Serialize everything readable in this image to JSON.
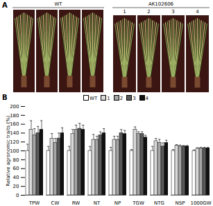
{
  "panel_labels": [
    "A",
    "B"
  ],
  "photo_panel": {
    "groups": [
      {
        "title": "WT",
        "lanes": [
          null,
          null,
          null,
          null
        ]
      },
      {
        "title": "AK102606",
        "lanes": [
          "1",
          "2",
          "3",
          "4"
        ]
      }
    ]
  },
  "chart_data": {
    "type": "bar",
    "y_label": "Relative agronomic traits (%)",
    "categories": [
      "TPW",
      "CW",
      "RW",
      "NT",
      "NP",
      "TGW",
      "NTG",
      "NSP",
      "1000GW"
    ],
    "series": [
      {
        "name": "WT",
        "color": "#ffffff",
        "values": [
          100,
          100,
          100,
          100,
          100,
          100,
          100,
          100,
          100
        ],
        "errors": [
          15,
          10,
          10,
          10,
          8,
          3,
          10,
          3,
          2
        ]
      },
      {
        "name": "1",
        "color": "#d9d9d9",
        "values": [
          148,
          127,
          138,
          125,
          125,
          148,
          122,
          112,
          105
        ],
        "errors": [
          20,
          12,
          10,
          12,
          8,
          6,
          6,
          2,
          2
        ]
      },
      {
        "name": "2",
        "color": "#a6a6a6",
        "values": [
          135,
          118,
          148,
          125,
          125,
          138,
          118,
          110,
          106
        ],
        "errors": [
          15,
          10,
          10,
          8,
          8,
          5,
          8,
          3,
          2
        ]
      },
      {
        "name": "3",
        "color": "#595959",
        "values": [
          140,
          128,
          150,
          135,
          140,
          138,
          110,
          110,
          106
        ],
        "errors": [
          15,
          12,
          12,
          8,
          8,
          5,
          8,
          2,
          2
        ]
      },
      {
        "name": "4",
        "color": "#111111",
        "values": [
          148,
          140,
          148,
          140,
          138,
          130,
          118,
          110,
          106
        ],
        "errors": [
          20,
          12,
          10,
          10,
          8,
          5,
          6,
          2,
          2
        ]
      }
    ],
    "ylim": [
      0,
      200
    ],
    "yticks": [
      0,
      20,
      40,
      60,
      80,
      100,
      120,
      140,
      160,
      180,
      200
    ],
    "grid": false
  }
}
